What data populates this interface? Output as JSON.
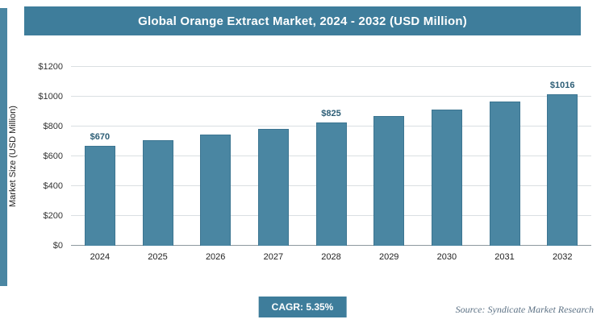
{
  "title": "Global Orange Extract Market, 2024 - 2032 (USD Million)",
  "footer": {
    "cagr_label": "CAGR: 5.35%",
    "source": "Source: Syndicate Market Research"
  },
  "colors": {
    "header_bg": "#3e7d9b",
    "accent": "#4a86a2",
    "bar_fill": "#4a86a2",
    "bar_edge": "#3c7591"
  },
  "chart_data": {
    "type": "bar",
    "title": "Global Orange Extract Market, 2024 - 2032 (USD Million)",
    "categories": [
      "2024",
      "2025",
      "2026",
      "2027",
      "2028",
      "2029",
      "2030",
      "2031",
      "2032"
    ],
    "values": [
      670,
      706,
      744,
      783,
      825,
      869,
      916,
      965,
      1016
    ],
    "point_labels": [
      "$670",
      "",
      "",
      "",
      "$825",
      "",
      "",
      "",
      "$1016"
    ],
    "xlabel": "",
    "ylabel": "Market Size (USD Million)",
    "ylim": [
      0,
      1200
    ],
    "ytick_step": 200,
    "yticks": [
      "$0",
      "$200",
      "$400",
      "$600",
      "$800",
      "$1000",
      "$1200"
    ],
    "grid": true,
    "legend": "none",
    "cagr": "5.35%"
  }
}
